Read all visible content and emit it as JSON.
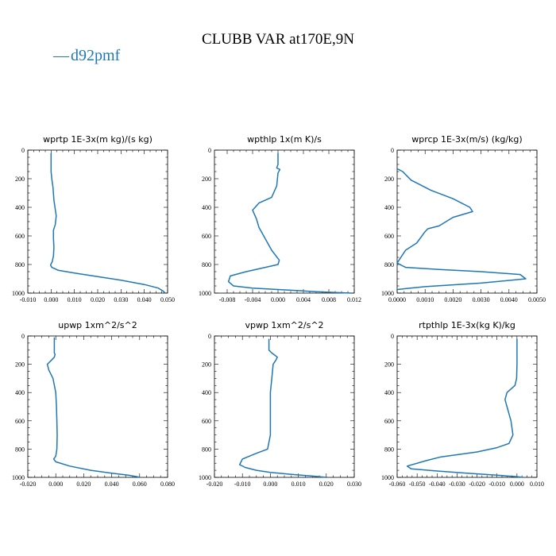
{
  "figure": {
    "title": "CLUBB VAR at170E,9N",
    "legend": [
      {
        "name": "d92pmf",
        "color": "#1f77b4",
        "marker": "—"
      }
    ]
  },
  "chart_data": [
    {
      "type": "line",
      "title": "wprtp  1E-3x(m kg)/(s kg)",
      "xlim": [
        -0.01,
        0.05
      ],
      "ylim": [
        1000,
        0
      ],
      "xticks": [
        "-0.010",
        "0.000",
        "0.010",
        "0.020",
        "0.030",
        "0.040",
        "0.050"
      ],
      "yticks": [
        "0",
        "200",
        "400",
        "600",
        "800",
        "1000"
      ],
      "series": [
        {
          "color": "#1f77b4",
          "x": [
            0.0,
            0.0,
            0.0,
            0.0003,
            0.0008,
            0.0012,
            0.0022,
            0.0018,
            0.001,
            0.001,
            0.0012,
            0.001,
            0.0005,
            0.0,
            -0.0002,
            0.0003,
            0.003,
            0.01,
            0.02,
            0.03,
            0.04,
            0.046,
            0.048,
            0.049
          ],
          "y": [
            20,
            100,
            150,
            200,
            260,
            350,
            460,
            520,
            560,
            620,
            680,
            740,
            780,
            795,
            805,
            820,
            840,
            860,
            885,
            910,
            940,
            965,
            985,
            1000
          ]
        }
      ]
    },
    {
      "type": "line",
      "title": "wpthlp  1x(m K)/s",
      "xlim": [
        -0.01,
        0.012
      ],
      "ylim": [
        1000,
        0
      ],
      "xticks": [
        "-0.008",
        "-0.004",
        "0.000",
        "0.004",
        "0.008",
        "0.012"
      ],
      "yticks": [
        "0",
        "200",
        "400",
        "600",
        "800",
        "1000"
      ],
      "series": [
        {
          "color": "#1f77b4",
          "x": [
            0.0,
            0.0,
            -0.0002,
            0.0003,
            0.0,
            -0.0002,
            -0.001,
            -0.003,
            -0.004,
            -0.0034,
            -0.003,
            -0.002,
            -0.001,
            0.0002,
            0.0,
            -0.002,
            -0.005,
            -0.0075,
            -0.0078,
            -0.007,
            -0.004,
            0.0,
            0.006,
            0.0115
          ],
          "y": [
            20,
            100,
            125,
            135,
            160,
            250,
            330,
            370,
            420,
            480,
            540,
            620,
            700,
            770,
            800,
            820,
            850,
            880,
            920,
            950,
            965,
            975,
            990,
            1000
          ]
        }
      ]
    },
    {
      "type": "line",
      "title": "wprcp  1E-3x(m/s) (kg/kg)",
      "xlim": [
        0.0,
        0.005
      ],
      "ylim": [
        1000,
        0
      ],
      "xticks": [
        "0.0000",
        "0.0010",
        "0.0020",
        "0.0030",
        "0.0040",
        "0.0050"
      ],
      "yticks": [
        "0",
        "200",
        "400",
        "600",
        "800",
        "1000"
      ],
      "series": [
        {
          "color": "#1f77b4",
          "x": [
            0.0,
            0.0002,
            0.0005,
            0.0008,
            0.0012,
            0.002,
            0.0026,
            0.0027,
            0.002,
            0.0015,
            0.0011,
            0.001,
            0.0007,
            0.0003,
            0.0001,
            0.0,
            0.0003,
            0.0015,
            0.003,
            0.0044,
            0.0046,
            0.003,
            0.001,
            0.0
          ],
          "y": [
            130,
            150,
            210,
            240,
            280,
            340,
            400,
            430,
            470,
            530,
            550,
            570,
            650,
            700,
            760,
            790,
            820,
            835,
            850,
            870,
            900,
            930,
            955,
            975
          ]
        }
      ]
    },
    {
      "type": "line",
      "title": "upwp  1xm^2/s^2",
      "xlim": [
        -0.02,
        0.08
      ],
      "ylim": [
        1000,
        0
      ],
      "xticks": [
        "-0.020",
        "0.000",
        "0.020",
        "0.040",
        "0.060",
        "0.080"
      ],
      "yticks": [
        "0",
        "200",
        "400",
        "600",
        "800",
        "1000"
      ],
      "series": [
        {
          "color": "#1f77b4",
          "x": [
            -0.001,
            -0.001,
            -0.0005,
            -0.001,
            -0.003,
            -0.006,
            -0.005,
            -0.002,
            0.0,
            0.0005,
            0.0008,
            0.001,
            0.0008,
            0.0,
            -0.0015,
            0.0,
            0.01,
            0.025,
            0.04,
            0.052,
            0.058,
            0.06
          ],
          "y": [
            10,
            120,
            130,
            150,
            170,
            200,
            240,
            300,
            400,
            500,
            600,
            700,
            800,
            850,
            870,
            890,
            920,
            950,
            970,
            985,
            995,
            1000
          ]
        }
      ]
    },
    {
      "type": "line",
      "title": "vpwp  1xm^2/s^2",
      "xlim": [
        -0.02,
        0.03
      ],
      "ylim": [
        1000,
        0
      ],
      "xticks": [
        "-0.020",
        "-0.010",
        "0.000",
        "0.010",
        "0.020",
        "0.030"
      ],
      "yticks": [
        "0",
        "200",
        "400",
        "600",
        "800",
        "1000"
      ],
      "series": [
        {
          "color": "#1f77b4",
          "x": [
            -0.0005,
            -0.0005,
            0.0005,
            0.0015,
            0.0025,
            0.002,
            0.001,
            0.0005,
            0.0,
            0.0,
            0.0,
            0.0,
            -0.001,
            -0.005,
            -0.01,
            -0.011,
            -0.009,
            -0.005,
            0.0,
            0.008,
            0.016,
            0.02
          ],
          "y": [
            20,
            100,
            120,
            135,
            150,
            170,
            200,
            300,
            400,
            500,
            600,
            700,
            800,
            830,
            870,
            910,
            930,
            950,
            965,
            980,
            992,
            1000
          ]
        }
      ]
    },
    {
      "type": "line",
      "title": "rtpthlp  1E-3x(kg K)/kg",
      "xlim": [
        -0.06,
        0.01
      ],
      "ylim": [
        1000,
        0
      ],
      "xticks": [
        "-0.060",
        "-0.050",
        "-0.040",
        "-0.030",
        "-0.020",
        "-0.010",
        "0.000",
        "0.010"
      ],
      "yticks": [
        "0",
        "200",
        "400",
        "600",
        "800",
        "1000"
      ],
      "series": [
        {
          "color": "#1f77b4",
          "x": [
            0.0,
            0.0,
            -0.0002,
            -0.001,
            -0.005,
            -0.006,
            -0.005,
            -0.004,
            -0.003,
            -0.002,
            -0.004,
            -0.01,
            -0.02,
            -0.03,
            -0.038,
            -0.045,
            -0.055,
            -0.053,
            -0.04,
            -0.025,
            -0.01,
            0.0,
            0.003
          ],
          "y": [
            20,
            200,
            300,
            350,
            400,
            450,
            500,
            550,
            600,
            700,
            760,
            790,
            820,
            840,
            855,
            880,
            920,
            940,
            955,
            970,
            985,
            995,
            1000
          ]
        }
      ]
    }
  ]
}
